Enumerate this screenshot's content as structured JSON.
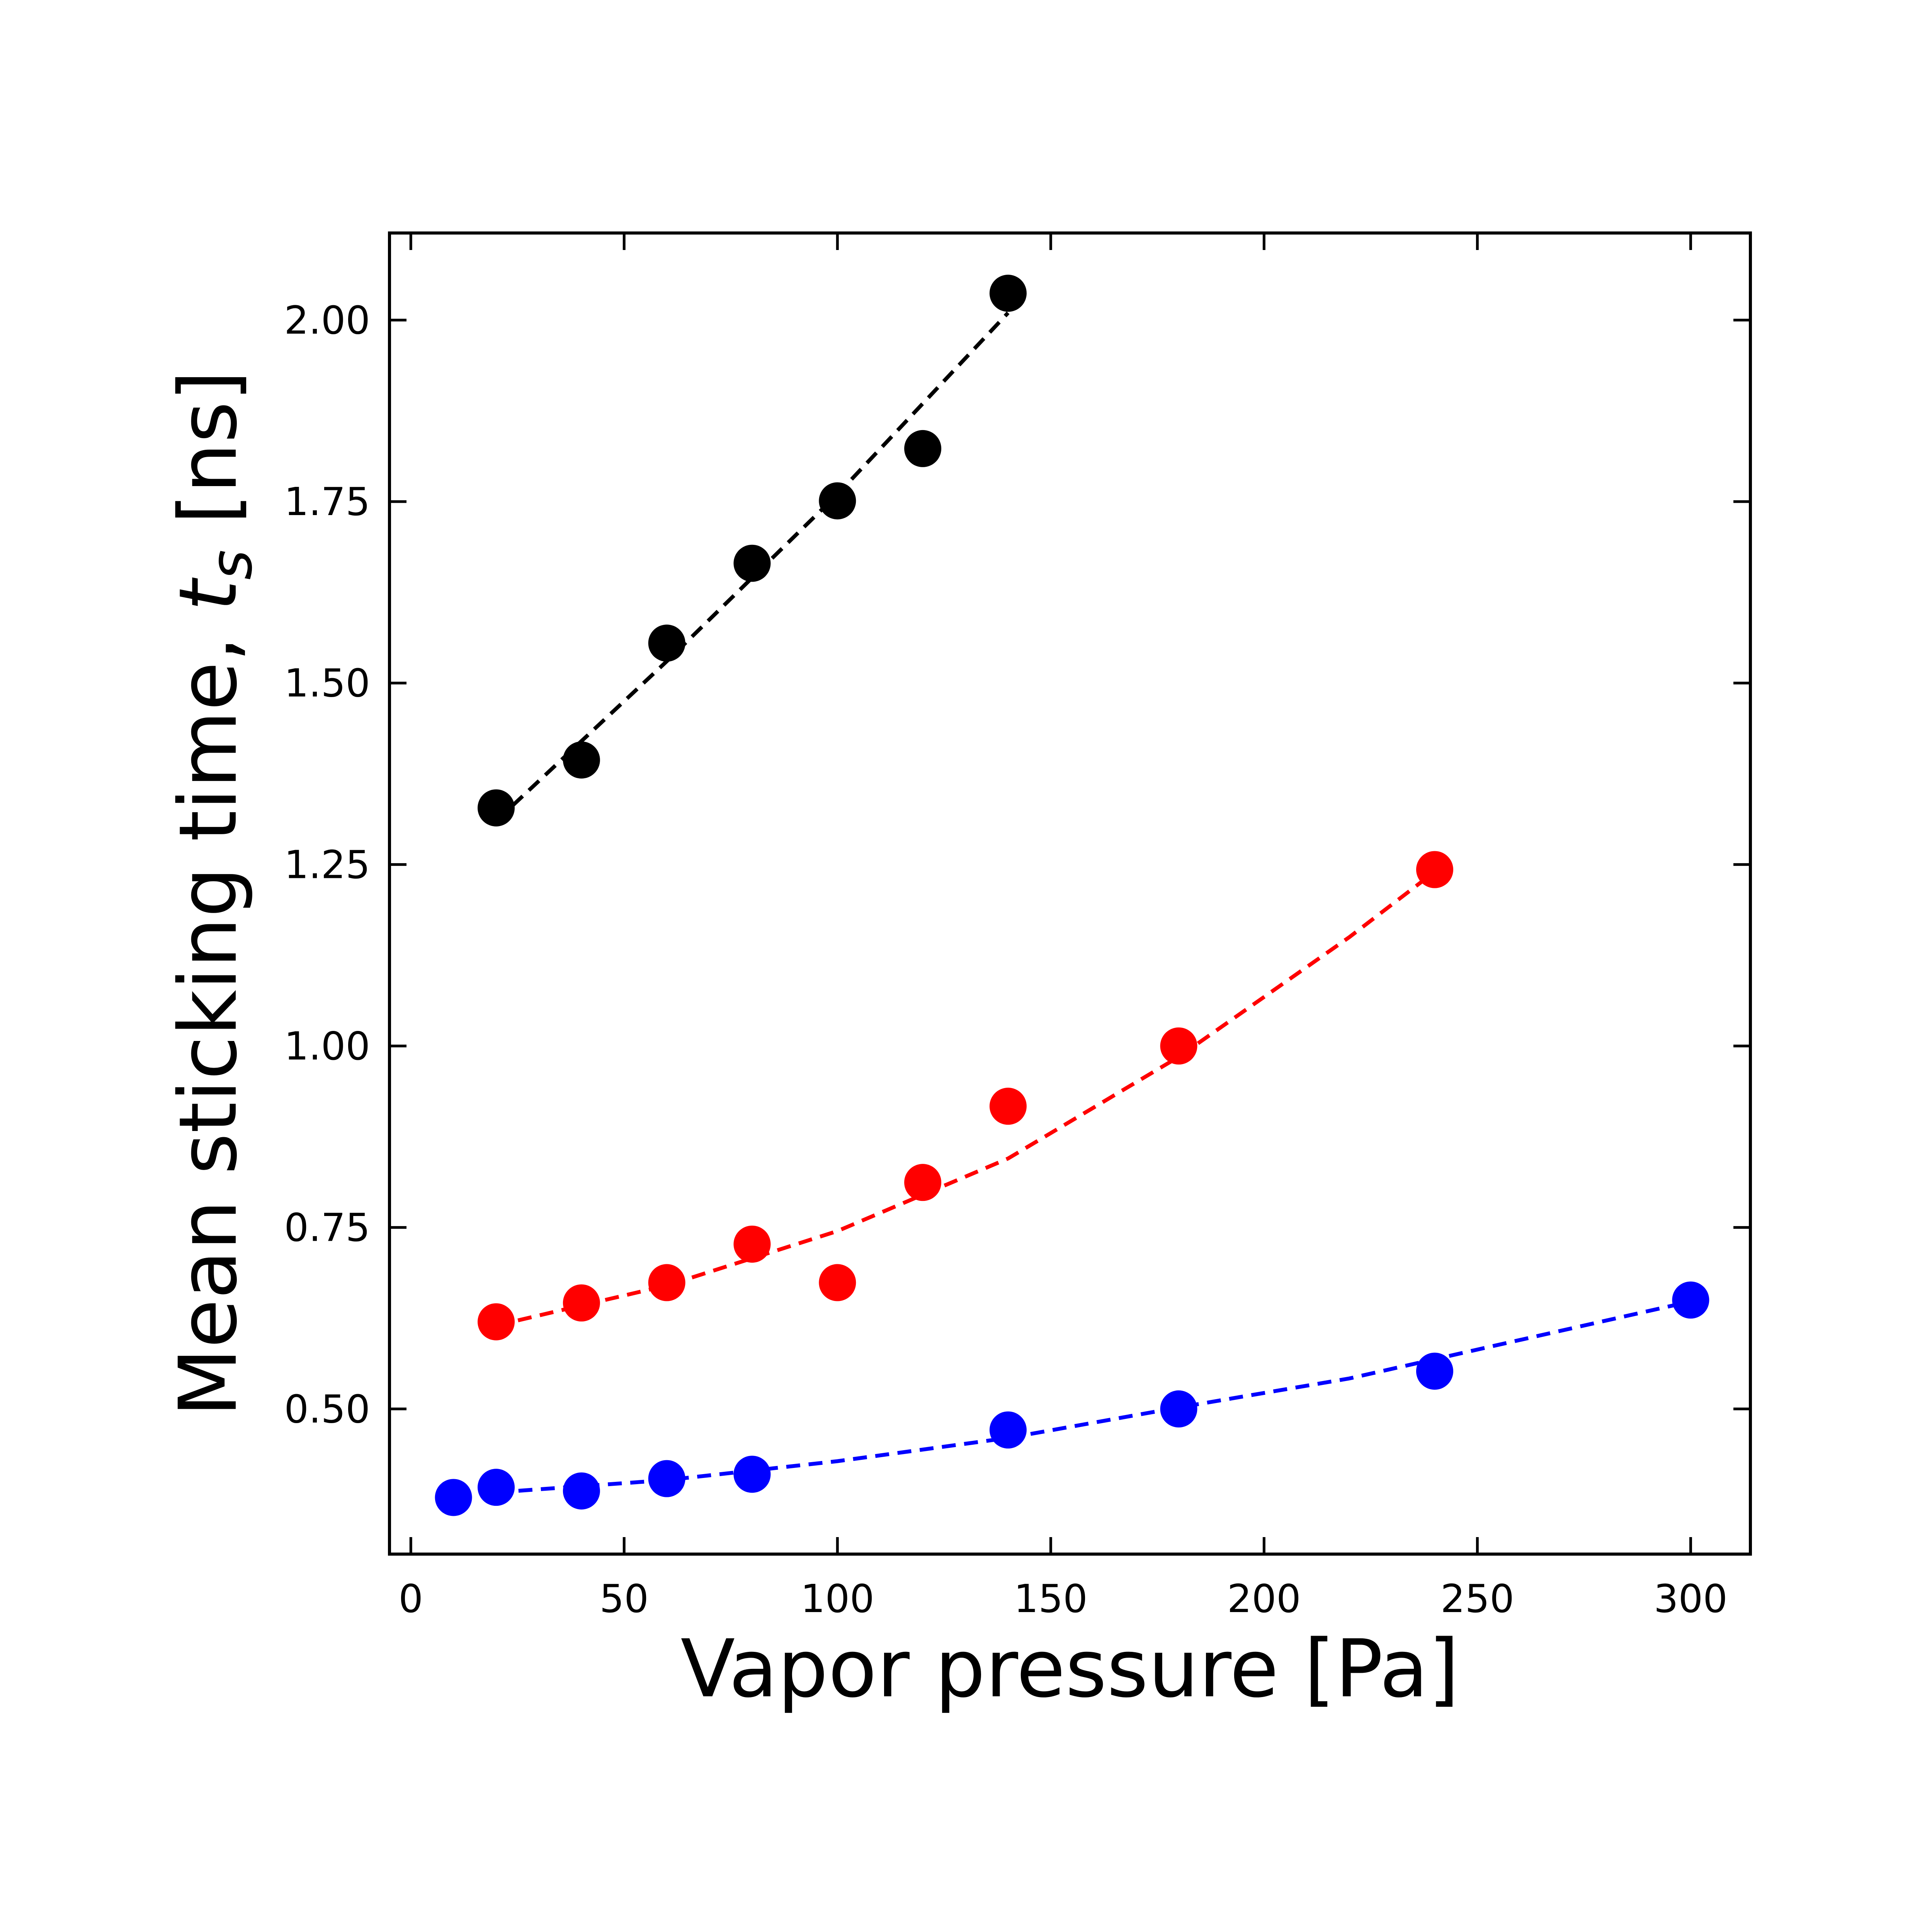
{
  "chart_data": {
    "type": "scatter",
    "xlabel": "Vapor pressure [Pa]",
    "ylabel": {
      "text": "Mean sticking time, ",
      "symbol": "t",
      "subscript": "s",
      "unit": " [ns]"
    },
    "xlim": [
      -5,
      314
    ],
    "ylim": [
      0.3,
      2.12
    ],
    "x_ticks": [
      0,
      50,
      100,
      150,
      200,
      250,
      300
    ],
    "y_ticks": [
      0.5,
      0.75,
      1.0,
      1.25,
      1.5,
      1.75,
      2.0
    ],
    "x_tick_labels": [
      "0",
      "50",
      "100",
      "150",
      "200",
      "250",
      "300"
    ],
    "y_tick_labels": [
      "0.50",
      "0.75",
      "1.00",
      "1.25",
      "1.50",
      "1.75",
      "2.00"
    ],
    "grid": false,
    "legend": "none",
    "series": [
      {
        "color": "#000000",
        "points": [
          [
            20,
            1.328
          ],
          [
            40,
            1.394
          ],
          [
            60,
            1.555
          ],
          [
            80,
            1.665
          ],
          [
            100,
            1.751
          ],
          [
            120,
            1.823
          ],
          [
            140,
            2.037
          ]
        ],
        "fit": [
          [
            20,
            1.31
          ],
          [
            60,
            1.53
          ],
          [
            100,
            1.76
          ],
          [
            140,
            2.01
          ]
        ]
      },
      {
        "color": "#ff0000",
        "points": [
          [
            20,
            0.62
          ],
          [
            40,
            0.646
          ],
          [
            60,
            0.674
          ],
          [
            80,
            0.727
          ],
          [
            100,
            0.674
          ],
          [
            120,
            0.812
          ],
          [
            140,
            0.917
          ],
          [
            180,
            1.0
          ],
          [
            240,
            1.243
          ]
        ],
        "fit": [
          [
            20,
            0.615
          ],
          [
            60,
            0.67
          ],
          [
            100,
            0.745
          ],
          [
            140,
            0.845
          ],
          [
            180,
            0.985
          ],
          [
            220,
            1.15
          ],
          [
            240,
            1.24
          ]
        ]
      },
      {
        "color": "#0000ff",
        "points": [
          [
            10,
            0.378
          ],
          [
            20,
            0.392
          ],
          [
            40,
            0.387
          ],
          [
            60,
            0.404
          ],
          [
            80,
            0.41
          ],
          [
            140,
            0.471
          ],
          [
            180,
            0.5
          ],
          [
            240,
            0.552
          ],
          [
            300,
            0.65
          ]
        ],
        "fit": [
          [
            20,
            0.385
          ],
          [
            60,
            0.402
          ],
          [
            100,
            0.428
          ],
          [
            140,
            0.46
          ],
          [
            180,
            0.502
          ],
          [
            220,
            0.542
          ],
          [
            260,
            0.595
          ],
          [
            300,
            0.648
          ]
        ]
      }
    ]
  }
}
